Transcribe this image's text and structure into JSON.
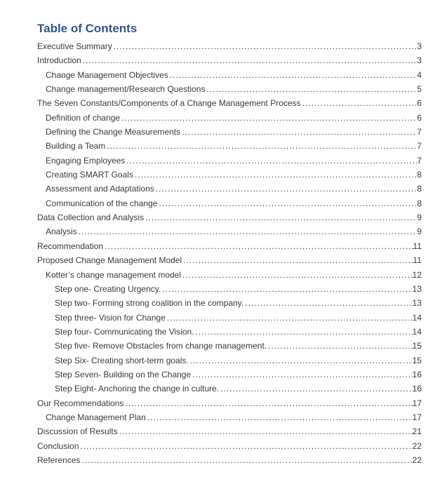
{
  "toc": {
    "title": "Table of Contents",
    "title_color": "#2F5496",
    "text_color": "#3a3a3a",
    "entries": [
      {
        "level": 1,
        "label": "Executive Summary",
        "page": "3"
      },
      {
        "level": 1,
        "label": "Introduction",
        "page": "3"
      },
      {
        "level": 2,
        "label": "Change Management Objectives",
        "page": "4"
      },
      {
        "level": 2,
        "label": "Change management/Research Questions",
        "page": "5"
      },
      {
        "level": 1,
        "label": "The Seven Constants/Components of a Change Management Process",
        "page": "6"
      },
      {
        "level": 2,
        "label": "Definition of change",
        "page": "6"
      },
      {
        "level": 2,
        "label": "Defining the Change Measurements",
        "page": "7"
      },
      {
        "level": 2,
        "label": "Building a Team",
        "page": "7"
      },
      {
        "level": 2,
        "label": "Engaging Employees",
        "page": "7"
      },
      {
        "level": 2,
        "label": "Creating SMART Goals",
        "page": "8"
      },
      {
        "level": 2,
        "label": "Assessment and Adaptations",
        "page": "8"
      },
      {
        "level": 2,
        "label": "Communication of the change",
        "page": "8"
      },
      {
        "level": 1,
        "label": "Data Collection and Analysis",
        "page": "9"
      },
      {
        "level": 2,
        "label": "Analysis",
        "page": "9"
      },
      {
        "level": 1,
        "label": "Recommendation",
        "page": "11"
      },
      {
        "level": 1,
        "label": "Proposed Change Management Model",
        "page": "11"
      },
      {
        "level": 2,
        "label": "Kotter’s change management model",
        "page": "12"
      },
      {
        "level": 3,
        "label": "Step one- Creating Urgency.",
        "page": "13"
      },
      {
        "level": 3,
        "label": "Step two- Forming strong coalition in the company.",
        "page": "13"
      },
      {
        "level": 3,
        "label": "Step three- Vision for Change",
        "page": "14"
      },
      {
        "level": 3,
        "label": "Step four- Communicating the Vision.",
        "page": "14"
      },
      {
        "level": 3,
        "label": "Step five- Remove Obstacles from change management.",
        "page": "15"
      },
      {
        "level": 3,
        "label": "Step Six- Creating short-term goals.",
        "page": "15"
      },
      {
        "level": 3,
        "label": "Step Seven- Building on the Change",
        "page": "16"
      },
      {
        "level": 3,
        "label": "Step Eight- Anchoring the change in culture.",
        "page": "16"
      },
      {
        "level": 1,
        "label": "Our Recommendations",
        "page": "17"
      },
      {
        "level": 2,
        "label": "Change Management Plan",
        "page": "17"
      },
      {
        "level": 1,
        "label": "Discussion of Results",
        "page": "21"
      },
      {
        "level": 1,
        "label": "Conclusion",
        "page": "22"
      },
      {
        "level": 1,
        "label": "References",
        "page": "22"
      }
    ]
  }
}
